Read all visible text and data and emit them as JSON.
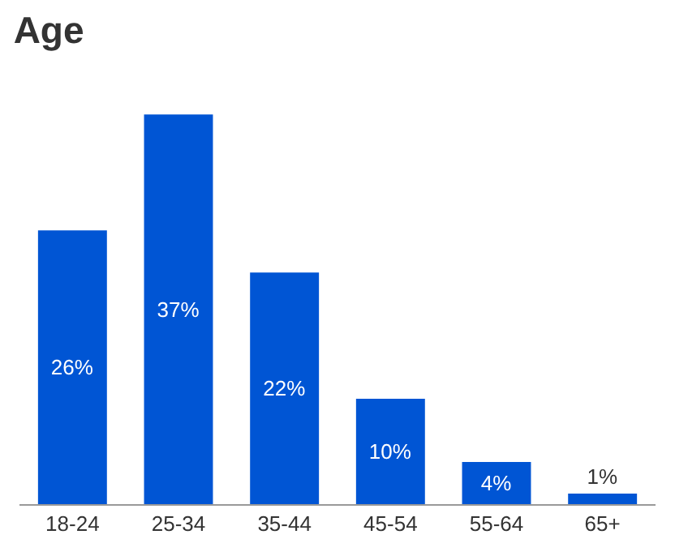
{
  "chart_data": {
    "type": "bar",
    "title": "Age",
    "categories": [
      "18-24",
      "25-34",
      "35-44",
      "45-54",
      "55-64",
      "65+"
    ],
    "values": [
      26,
      37,
      22,
      10,
      4,
      1
    ],
    "color": "#0055d4",
    "data_labels": true,
    "value_labels": [
      "26%",
      "37%",
      "22%",
      "10%",
      "4%",
      "1%"
    ]
  }
}
